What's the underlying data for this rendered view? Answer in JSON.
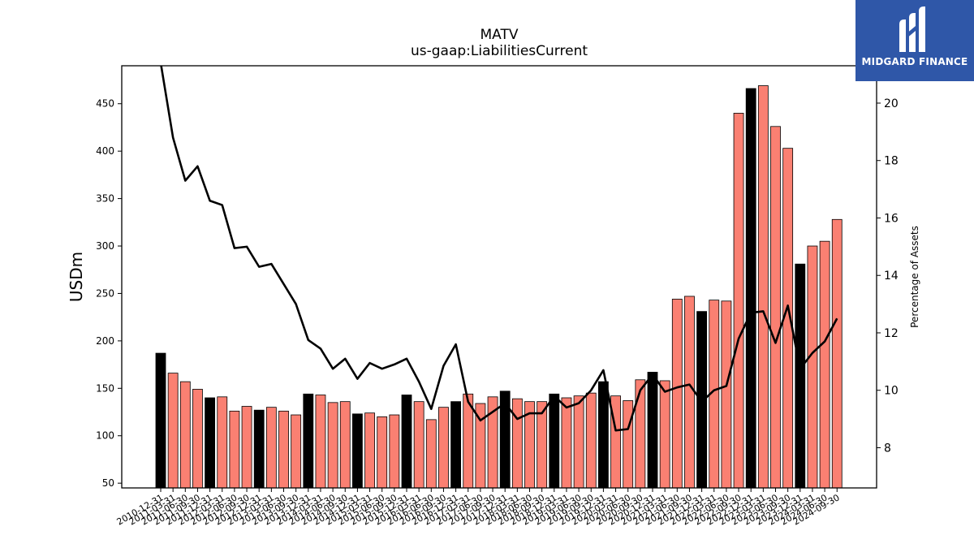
{
  "chart_data": {
    "type": "bar+line",
    "title": "MATV",
    "subtitle": "us-gaap:LiabilitiesCurrent",
    "ylabel": "USDm",
    "y2label": "Percentage of Assets",
    "ylim": [
      45,
      490
    ],
    "y2lim": [
      6.6,
      21.3
    ],
    "yticks": [
      50,
      100,
      150,
      200,
      250,
      300,
      350,
      400,
      450
    ],
    "y2ticks": [
      8,
      10,
      12,
      14,
      16,
      18,
      20
    ],
    "grid": false,
    "colors": {
      "bar": "#fa8072",
      "bar_annual": "#000000",
      "line": "#000000"
    },
    "categories": [
      "2010-12-31",
      "2011-03-31",
      "2011-06-30",
      "2011-09-30",
      "2011-12-31",
      "2012-03-31",
      "2012-06-30",
      "2012-09-30",
      "2012-12-31",
      "2013-03-31",
      "2013-06-30",
      "2013-09-30",
      "2013-12-31",
      "2014-03-31",
      "2014-06-30",
      "2014-09-30",
      "2014-12-31",
      "2015-03-31",
      "2015-06-30",
      "2015-09-30",
      "2015-12-31",
      "2016-03-31",
      "2016-06-30",
      "2016-09-30",
      "2016-12-31",
      "2017-03-31",
      "2017-06-30",
      "2017-09-30",
      "2017-12-31",
      "2018-03-31",
      "2018-06-30",
      "2018-09-30",
      "2018-12-31",
      "2019-03-31",
      "2019-06-30",
      "2019-09-30",
      "2019-12-31",
      "2020-03-31",
      "2020-06-30",
      "2020-09-30",
      "2020-12-31",
      "2021-03-31",
      "2021-06-30",
      "2021-09-30",
      "2021-12-31",
      "2022-03-31",
      "2022-06-30",
      "2022-09-30",
      "2022-12-31",
      "2023-03-31",
      "2023-06-30",
      "2023-09-30",
      "2023-12-31",
      "2024-03-31",
      "2024-06-30",
      "2024-09-30"
    ],
    "values": [
      187,
      166,
      157,
      149,
      140,
      141,
      126,
      131,
      127,
      130,
      126,
      122,
      144,
      143,
      135,
      136,
      123,
      124,
      120,
      122,
      143,
      136,
      117,
      130,
      136,
      144,
      134,
      141,
      147,
      139,
      136,
      136,
      144,
      140,
      142,
      145,
      157,
      142,
      137,
      159,
      167,
      158,
      244,
      247,
      231,
      243,
      242,
      440,
      466,
      469,
      426,
      403,
      281,
      300,
      305,
      328
    ],
    "annual": [
      true,
      false,
      false,
      false,
      true,
      false,
      false,
      false,
      true,
      false,
      false,
      false,
      true,
      false,
      false,
      false,
      true,
      false,
      false,
      false,
      true,
      false,
      false,
      false,
      true,
      false,
      false,
      false,
      true,
      false,
      false,
      false,
      true,
      false,
      false,
      false,
      true,
      false,
      false,
      false,
      true,
      false,
      false,
      false,
      true,
      false,
      false,
      false,
      true,
      false,
      false,
      false,
      true,
      false,
      false,
      false
    ],
    "series": [
      {
        "name": "",
        "axis": "y2",
        "type": "line",
        "values": [
          21.4,
          18.8,
          17.3,
          17.8,
          16.6,
          16.45,
          14.95,
          15.0,
          14.3,
          14.4,
          13.7,
          13.0,
          11.75,
          11.45,
          10.75,
          11.1,
          10.4,
          10.95,
          10.75,
          10.9,
          11.1,
          10.3,
          9.35,
          10.85,
          11.6,
          9.6,
          8.95,
          9.25,
          9.55,
          9.0,
          9.2,
          9.2,
          9.8,
          9.4,
          9.55,
          10.0,
          10.7,
          8.6,
          8.65,
          10.0,
          10.55,
          9.95,
          10.1,
          10.2,
          9.6,
          10.0,
          10.15,
          11.8,
          12.7,
          12.75,
          11.65,
          12.95,
          10.75,
          11.3,
          11.7,
          12.5
        ]
      }
    ]
  },
  "logo": {
    "text": "MIDGARD FINANCE",
    "icon": "midgard-logo-icon"
  }
}
